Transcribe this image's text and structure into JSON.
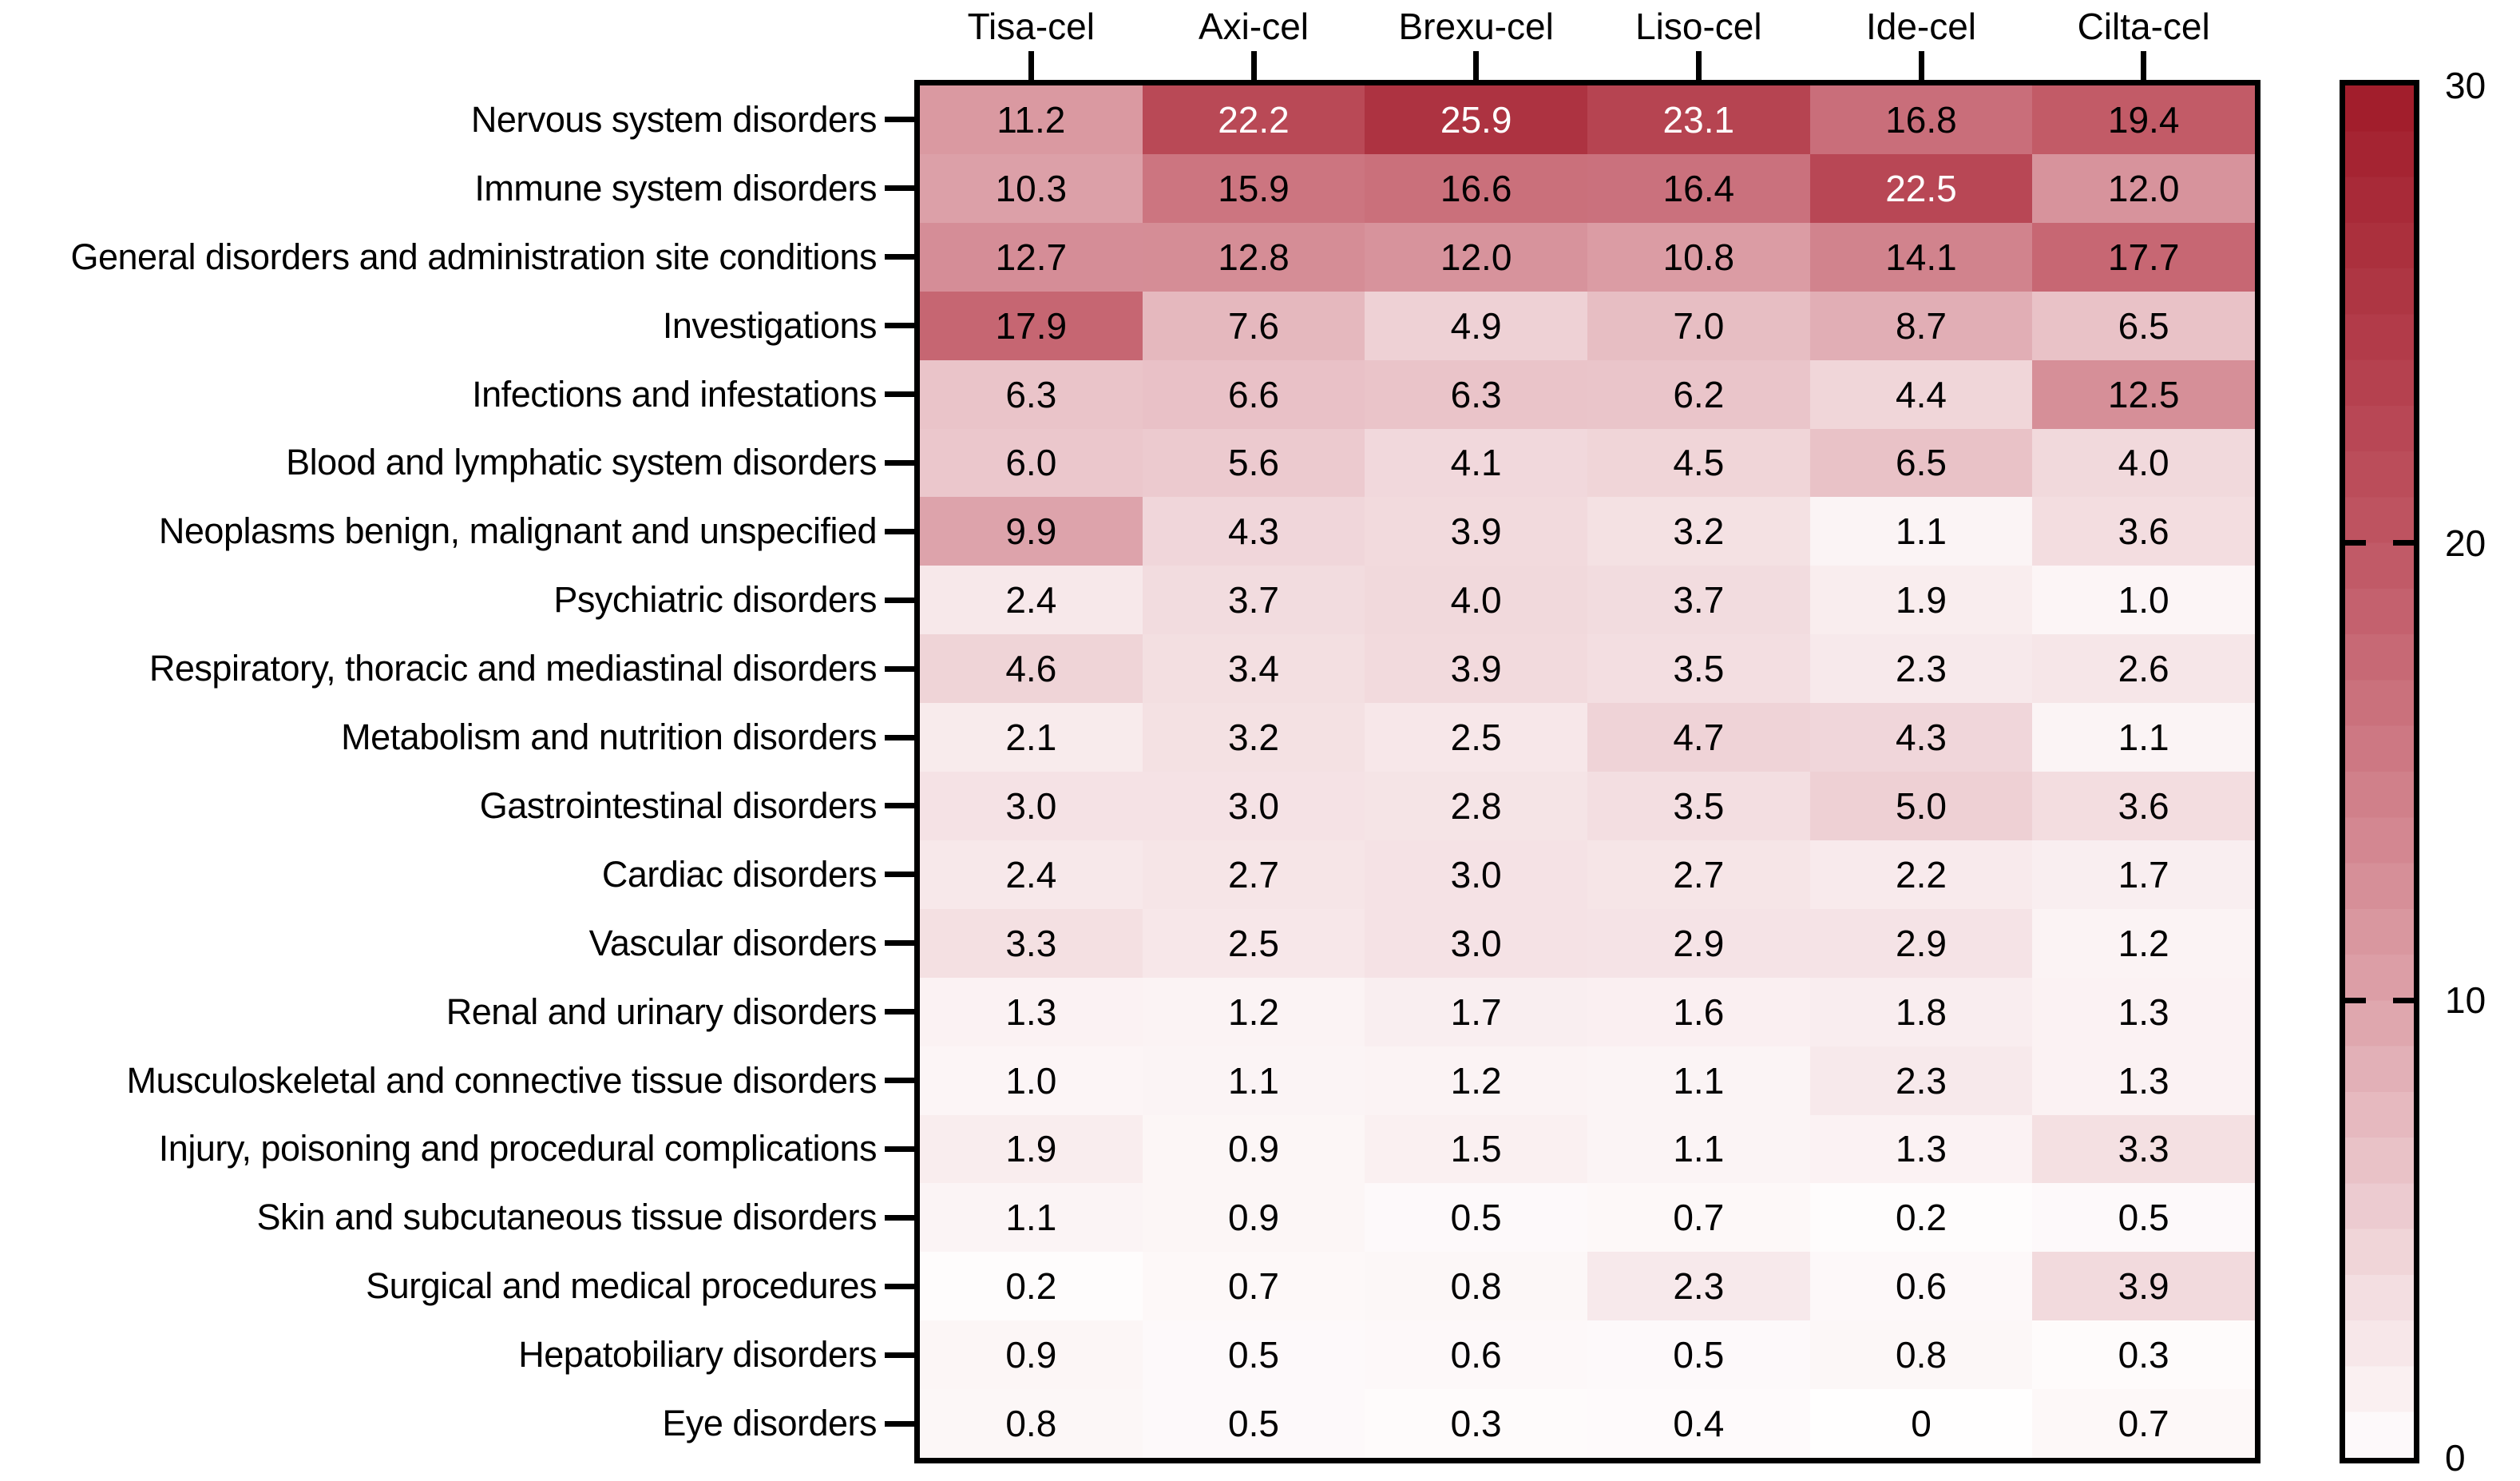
{
  "chart_data": {
    "type": "heatmap",
    "title": "",
    "columns": [
      "Tisa-cel",
      "Axi-cel",
      "Brexu-cel",
      "Liso-cel",
      "Ide-cel",
      "Cilta-cel"
    ],
    "rows": [
      "Nervous system disorders",
      "Immune system disorders",
      "General disorders and administration site conditions",
      "Investigations",
      "Infections and infestations",
      "Blood and lymphatic system disorders",
      "Neoplasms benign, malignant and unspecified",
      "Psychiatric disorders",
      "Respiratory, thoracic and mediastinal disorders",
      "Metabolism and nutrition disorders",
      "Gastrointestinal disorders",
      "Cardiac disorders",
      "Vascular disorders",
      "Renal and urinary disorders",
      "Musculoskeletal and connective tissue disorders",
      "Injury, poisoning and procedural complications",
      "Skin and subcutaneous tissue disorders",
      "Surgical and medical procedures",
      "Hepatobiliary disorders",
      "Eye disorders"
    ],
    "cells": [
      [
        "11.2",
        "22.2",
        "25.9",
        "23.1",
        "16.8",
        "19.4"
      ],
      [
        "10.3",
        "15.9",
        "16.6",
        "16.4",
        "22.5",
        "12.0"
      ],
      [
        "12.7",
        "12.8",
        "12.0",
        "10.8",
        "14.1",
        "17.7"
      ],
      [
        "17.9",
        "7.6",
        "4.9",
        "7.0",
        "8.7",
        "6.5"
      ],
      [
        "6.3",
        "6.6",
        "6.3",
        "6.2",
        "4.4",
        "12.5"
      ],
      [
        "6.0",
        "5.6",
        "4.1",
        "4.5",
        "6.5",
        "4.0"
      ],
      [
        "9.9",
        "4.3",
        "3.9",
        "3.2",
        "1.1",
        "3.6"
      ],
      [
        "2.4",
        "3.7",
        "4.0",
        "3.7",
        "1.9",
        "1.0"
      ],
      [
        "4.6",
        "3.4",
        "3.9",
        "3.5",
        "2.3",
        "2.6"
      ],
      [
        "2.1",
        "3.2",
        "2.5",
        "4.7",
        "4.3",
        "1.1"
      ],
      [
        "3.0",
        "3.0",
        "2.8",
        "3.5",
        "5.0",
        "3.6"
      ],
      [
        "2.4",
        "2.7",
        "3.0",
        "2.7",
        "2.2",
        "1.7"
      ],
      [
        "3.3",
        "2.5",
        "3.0",
        "2.9",
        "2.9",
        "1.2"
      ],
      [
        "1.3",
        "1.2",
        "1.7",
        "1.6",
        "1.8",
        "1.3"
      ],
      [
        "1.0",
        "1.1",
        "1.2",
        "1.1",
        "2.3",
        "1.3"
      ],
      [
        "1.9",
        "0.9",
        "1.5",
        "1.1",
        "1.3",
        "3.3"
      ],
      [
        "1.1",
        "0.9",
        "0.5",
        "0.7",
        "0.2",
        "0.5"
      ],
      [
        "0.2",
        "0.7",
        "0.8",
        "2.3",
        "0.6",
        "3.9"
      ],
      [
        "0.9",
        "0.5",
        "0.6",
        "0.5",
        "0.8",
        "0.3"
      ],
      [
        "0.8",
        "0.5",
        "0.3",
        "0.4",
        "0",
        "0.7"
      ]
    ],
    "colorbar": {
      "min": 0,
      "max": 30,
      "tick_labels": [
        "30",
        "20",
        "10",
        "0"
      ],
      "tick_values": [
        30,
        20,
        10,
        0
      ],
      "inner_tick_values": [
        20,
        10
      ],
      "steps": 30,
      "color_stops": [
        {
          "value": 0,
          "color": "#fffefe"
        },
        {
          "value": 10,
          "color": "#dda2aa"
        },
        {
          "value": 20,
          "color": "#c05663"
        },
        {
          "value": 30,
          "color": "#a01b29"
        }
      ]
    },
    "white_text_threshold": 20,
    "cell_text_color": "#000000",
    "cell_text_color_high": "#ffffff",
    "axis_color": "#000000",
    "legend_position": "right",
    "grid": false
  }
}
